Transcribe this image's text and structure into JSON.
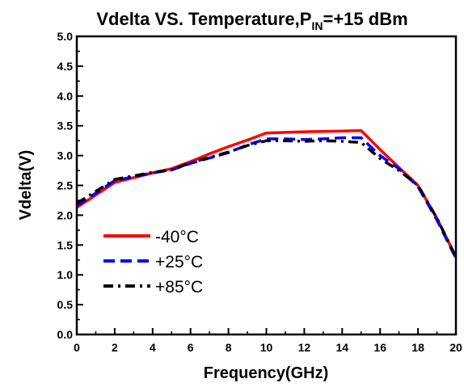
{
  "chart_data": {
    "type": "line",
    "title": {
      "main": "Vdelta VS. Temperature,P",
      "subscript": "IN",
      "suffix": "=+15 dBm"
    },
    "xlabel": "Frequency(GHz)",
    "ylabel": "Vdelta(V)",
    "xlim": [
      0,
      20
    ],
    "ylim": [
      0,
      5
    ],
    "x_ticks": [
      "0",
      "2",
      "4",
      "6",
      "8",
      "10",
      "12",
      "14",
      "16",
      "18",
      "20"
    ],
    "y_ticks": [
      "0.0",
      "0.5",
      "1.0",
      "1.5",
      "2.0",
      "2.5",
      "3.0",
      "3.5",
      "4.0",
      "4.5",
      "5.0"
    ],
    "grid": false,
    "legend_position": "bottom-left",
    "series": [
      {
        "name": "-40°C",
        "color": "#ff0000",
        "style": "solid",
        "x": [
          0,
          2,
          4,
          5,
          6,
          7,
          8,
          9,
          10,
          12,
          14,
          15,
          16,
          17,
          18,
          19,
          20
        ],
        "y": [
          2.13,
          2.55,
          2.71,
          2.78,
          2.9,
          3.03,
          3.15,
          3.26,
          3.38,
          3.4,
          3.41,
          3.42,
          3.1,
          2.8,
          2.5,
          1.95,
          1.3
        ]
      },
      {
        "name": "+25°C",
        "color": "#0000ff",
        "style": "dash",
        "x": [
          0,
          2,
          4,
          5,
          6,
          7,
          8,
          9,
          10,
          11,
          12,
          13,
          14,
          15,
          16,
          17,
          18,
          19,
          20
        ],
        "y": [
          2.16,
          2.58,
          2.71,
          2.76,
          2.87,
          2.96,
          3.05,
          3.18,
          3.28,
          3.28,
          3.27,
          3.28,
          3.3,
          3.3,
          3.0,
          2.78,
          2.48,
          1.92,
          1.28
        ]
      },
      {
        "name": "+85°C",
        "color": "#000000",
        "style": "dashdot",
        "x": [
          0,
          2,
          4,
          5,
          6,
          7,
          8,
          9,
          10,
          11,
          12,
          13,
          14,
          15,
          16,
          17,
          18,
          19,
          20
        ],
        "y": [
          2.2,
          2.6,
          2.72,
          2.76,
          2.88,
          2.97,
          3.06,
          3.17,
          3.25,
          3.25,
          3.24,
          3.25,
          3.24,
          3.22,
          2.95,
          2.75,
          2.5,
          1.95,
          1.3
        ]
      }
    ]
  }
}
